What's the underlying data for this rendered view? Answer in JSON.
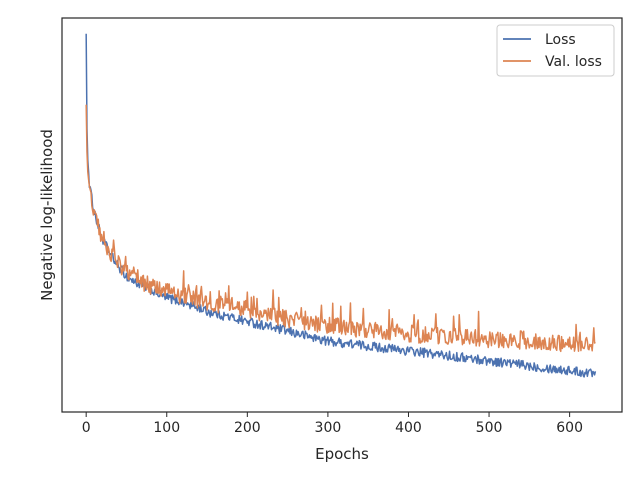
{
  "chart_data": {
    "type": "line",
    "xlabel": "Epochs",
    "ylabel": "Negative log-likelihood",
    "xlim": [
      -30,
      665
    ],
    "ylim": [
      0,
      1
    ],
    "xticks": [
      "0",
      "100",
      "200",
      "300",
      "400",
      "500",
      "600"
    ],
    "yticks_shown": false,
    "grid": false,
    "legend_location": "top-right",
    "series": [
      {
        "name": "Loss",
        "color": "#4c72b0",
        "x": [
          0,
          1,
          2,
          4,
          7,
          10,
          15,
          20,
          30,
          40,
          50,
          60,
          70,
          80,
          90,
          100,
          110,
          120,
          130,
          140,
          150,
          160,
          170,
          180,
          190,
          200,
          210,
          220,
          230,
          240,
          250,
          260,
          270,
          280,
          290,
          300,
          320,
          340,
          360,
          380,
          400,
          420,
          440,
          460,
          480,
          500,
          520,
          540,
          560,
          580,
          600,
          620,
          632
        ],
        "y": [
          0.96,
          0.72,
          0.64,
          0.58,
          0.54,
          0.51,
          0.47,
          0.44,
          0.4,
          0.37,
          0.345,
          0.33,
          0.32,
          0.31,
          0.3,
          0.29,
          0.285,
          0.28,
          0.27,
          0.265,
          0.255,
          0.25,
          0.245,
          0.24,
          0.235,
          0.23,
          0.225,
          0.22,
          0.215,
          0.21,
          0.205,
          0.2,
          0.195,
          0.19,
          0.185,
          0.18,
          0.175,
          0.17,
          0.165,
          0.16,
          0.155,
          0.15,
          0.145,
          0.14,
          0.135,
          0.13,
          0.125,
          0.12,
          0.115,
          0.11,
          0.105,
          0.1,
          0.1
        ]
      },
      {
        "name": "Val. loss",
        "color": "#dd8452",
        "x": [
          0,
          1,
          2,
          4,
          7,
          10,
          15,
          20,
          30,
          40,
          50,
          60,
          70,
          80,
          90,
          100,
          110,
          120,
          130,
          140,
          150,
          160,
          170,
          180,
          190,
          200,
          210,
          220,
          230,
          240,
          250,
          260,
          270,
          280,
          290,
          300,
          320,
          340,
          360,
          380,
          400,
          420,
          440,
          460,
          480,
          500,
          520,
          540,
          560,
          580,
          600,
          620,
          632
        ],
        "y": [
          0.78,
          0.66,
          0.61,
          0.57,
          0.535,
          0.505,
          0.47,
          0.445,
          0.405,
          0.375,
          0.355,
          0.345,
          0.33,
          0.32,
          0.315,
          0.305,
          0.3,
          0.295,
          0.29,
          0.285,
          0.28,
          0.275,
          0.27,
          0.27,
          0.265,
          0.26,
          0.255,
          0.25,
          0.245,
          0.24,
          0.235,
          0.235,
          0.23,
          0.225,
          0.225,
          0.22,
          0.215,
          0.21,
          0.205,
          0.205,
          0.2,
          0.195,
          0.195,
          0.19,
          0.19,
          0.185,
          0.185,
          0.18,
          0.18,
          0.175,
          0.175,
          0.17,
          0.17
        ]
      }
    ]
  }
}
